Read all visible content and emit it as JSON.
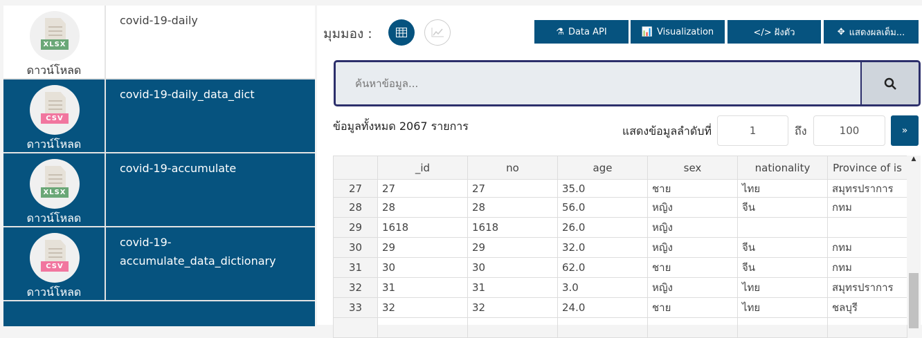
{
  "resources": [
    {
      "name": "covid-19-daily",
      "format": "XLSX",
      "download": "ดาวน์โหลด",
      "selected": false
    },
    {
      "name": "covid-19-daily_data_dict",
      "format": "CSV",
      "download": "ดาวน์โหลด",
      "selected": true
    },
    {
      "name": "covid-19-accumulate",
      "format": "XLSX",
      "download": "ดาวน์โหลด",
      "selected": true
    },
    {
      "name": "covid-19-accumulate_data_dictionary",
      "format": "CSV",
      "download": "ดาวน์โหลด",
      "selected": true
    }
  ],
  "view": {
    "label": "มุมมอง :",
    "active": "grid"
  },
  "toolbar": {
    "data_api": "Data API",
    "visualization": "Visualization",
    "embed": "</> ฝังตัว",
    "fullscreen": "แสดงผลเต็ม..."
  },
  "search": {
    "placeholder": "ค้นหาข้อมูล..."
  },
  "total": "ข้อมูลทั้งหมด 2067 รายการ",
  "range": {
    "label": "แสดงข้อมูลลำดับที่",
    "from": "1",
    "to_label": "ถึง",
    "to": "100",
    "next": "»"
  },
  "colors": {
    "primary": "#06537f",
    "search_border": "#2c2f6b"
  },
  "table": {
    "columns": [
      "",
      "_id",
      "no",
      "age",
      "sex",
      "nationality",
      "Province of is"
    ],
    "rows": [
      [
        "27",
        "27",
        "27",
        "35.0",
        "ชาย",
        "ไทย",
        "สมุทรปราการ"
      ],
      [
        "28",
        "28",
        "28",
        "56.0",
        "หญิง",
        "จีน",
        "กทม"
      ],
      [
        "29",
        "1618",
        "1618",
        "26.0",
        "หญิง",
        "",
        ""
      ],
      [
        "30",
        "29",
        "29",
        "32.0",
        "หญิง",
        "จีน",
        "กทม"
      ],
      [
        "31",
        "30",
        "30",
        "62.0",
        "ชาย",
        "จีน",
        "กทม"
      ],
      [
        "32",
        "31",
        "31",
        "3.0",
        "หญิง",
        "ไทย",
        "สมุทรปราการ"
      ],
      [
        "33",
        "32",
        "32",
        "24.0",
        "ชาย",
        "ไทย",
        "ชลบุรี"
      ]
    ]
  }
}
